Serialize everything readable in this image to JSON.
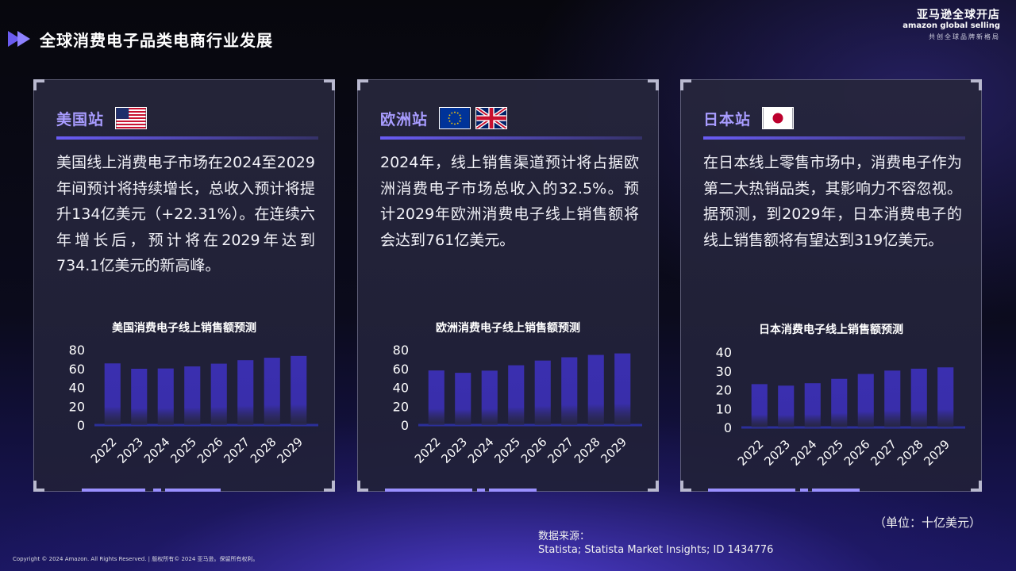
{
  "header": {
    "title": "全球消费电子品类电商行业发展"
  },
  "brand": {
    "cn": "亚马逊全球开店",
    "en": "amazon global selling",
    "tagline": "共创全球品牌新格局"
  },
  "cards": [
    {
      "station": "美国站",
      "flags": [
        "us-flag"
      ],
      "text": "美国线上消费电子市场在2024至2029年间预计将持续增长，总收入预计将提升134亿美元（+22.31%）。在连续六年增长后，预计将在2029年达到734.1亿美元的新高峰。",
      "chart_title": "美国消费电子线上销售额预测"
    },
    {
      "station": "欧洲站",
      "flags": [
        "eu-flag",
        "uk-flag"
      ],
      "text": "2024年，线上销售渠道预计将占据欧洲消费电子市场总收入的32.5%。预计2029年欧洲消费电子线上销售额将会达到761亿美元。",
      "chart_title": "欧洲消费电子线上销售额预测"
    },
    {
      "station": "日本站",
      "flags": [
        "japan-flag"
      ],
      "text": "在日本线上零售市场中，消费电子作为第二大热销品类，其影响力不容忽视。据预测，到2029年，日本消费电子的线上销售额将有望达到319亿美元。",
      "chart_title": "日本消费电子线上销售额预测"
    }
  ],
  "chart_data": [
    {
      "type": "bar",
      "title": "美国消费电子线上销售额预测",
      "categories": [
        "2022",
        "2023",
        "2024",
        "2025",
        "2026",
        "2027",
        "2028",
        "2029"
      ],
      "values": [
        65.5,
        59.8,
        60.1,
        62.3,
        65.2,
        68.9,
        71.5,
        73.4
      ],
      "ylim": [
        0,
        80
      ],
      "yticks": [
        0,
        20,
        40,
        60,
        80
      ],
      "color": "#3a2fb0"
    },
    {
      "type": "bar",
      "title": "欧洲消费电子线上销售额预测",
      "categories": [
        "2022",
        "2023",
        "2024",
        "2025",
        "2026",
        "2027",
        "2028",
        "2029"
      ],
      "values": [
        58.0,
        55.5,
        57.8,
        63.5,
        68.5,
        72.0,
        74.5,
        76.1
      ],
      "ylim": [
        0,
        80
      ],
      "yticks": [
        0,
        20,
        40,
        60,
        80
      ],
      "color": "#3a2fb0"
    },
    {
      "type": "bar",
      "title": "日本消费电子线上销售额预测",
      "categories": [
        "2022",
        "2023",
        "2024",
        "2025",
        "2026",
        "2027",
        "2028",
        "2029"
      ],
      "values": [
        23.0,
        22.2,
        23.5,
        25.8,
        28.4,
        30.2,
        31.2,
        31.9
      ],
      "ylim": [
        0,
        40
      ],
      "yticks": [
        0,
        10,
        20,
        30,
        40
      ],
      "color": "#3a2fb0"
    }
  ],
  "footer": {
    "unit": "（单位：十亿美元）",
    "source_label": "数据来源：",
    "source": "Statista; Statista Market Insights; ID 1434776",
    "copyright": "Copyright © 2024 Amazon. All Rights Reserved. | 版权所有© 2024 亚马逊。保留所有权利。"
  }
}
